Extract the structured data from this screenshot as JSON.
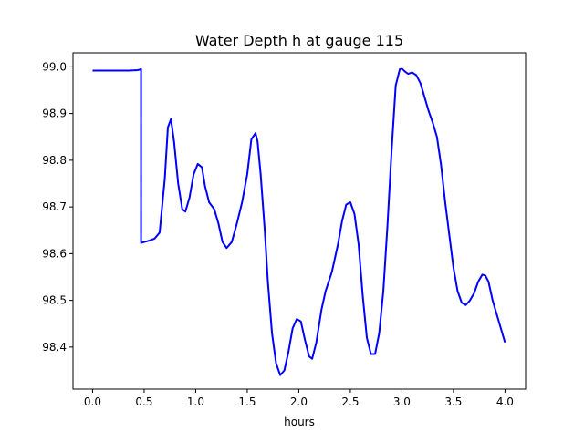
{
  "chart_data": {
    "type": "line",
    "title": "Water Depth h at gauge 115",
    "xlabel": "hours",
    "ylabel": "",
    "xlim": [
      -0.19,
      4.2
    ],
    "ylim": [
      98.31,
      99.03
    ],
    "xticks": [
      0.0,
      0.5,
      1.0,
      1.5,
      2.0,
      2.5,
      3.0,
      3.5,
      4.0
    ],
    "xtick_labels": [
      "0.0",
      "0.5",
      "1.0",
      "1.5",
      "2.0",
      "2.5",
      "3.0",
      "3.5",
      "4.0"
    ],
    "yticks": [
      98.4,
      98.5,
      98.6,
      98.7,
      98.8,
      98.9,
      99.0
    ],
    "ytick_labels": [
      "98.4",
      "98.5",
      "98.6",
      "98.7",
      "98.8",
      "98.9",
      "99.0"
    ],
    "grid": false,
    "series": [
      {
        "color": "#0000ff",
        "x": [
          0.0,
          0.2,
          0.35,
          0.44,
          0.47,
          0.47,
          0.55,
          0.6,
          0.65,
          0.7,
          0.73,
          0.76,
          0.79,
          0.83,
          0.87,
          0.9,
          0.94,
          0.98,
          1.02,
          1.06,
          1.09,
          1.13,
          1.18,
          1.22,
          1.26,
          1.3,
          1.35,
          1.4,
          1.45,
          1.5,
          1.54,
          1.58,
          1.6,
          1.63,
          1.67,
          1.7,
          1.74,
          1.78,
          1.82,
          1.86,
          1.9,
          1.94,
          1.98,
          2.02,
          2.06,
          2.1,
          2.13,
          2.17,
          2.22,
          2.26,
          2.32,
          2.38,
          2.42,
          2.46,
          2.5,
          2.54,
          2.58,
          2.62,
          2.66,
          2.7,
          2.74,
          2.78,
          2.82,
          2.86,
          2.9,
          2.94,
          2.98,
          3.0,
          3.03,
          3.06,
          3.1,
          3.14,
          3.18,
          3.22,
          3.26,
          3.3,
          3.34,
          3.38,
          3.42,
          3.46,
          3.5,
          3.54,
          3.58,
          3.62,
          3.66,
          3.7,
          3.74,
          3.78,
          3.81,
          3.84,
          3.88,
          3.92,
          3.96,
          4.0
        ],
        "y": [
          98.992,
          98.992,
          98.992,
          98.993,
          98.995,
          98.623,
          98.628,
          98.632,
          98.645,
          98.76,
          98.87,
          98.888,
          98.84,
          98.75,
          98.695,
          98.69,
          98.72,
          98.77,
          98.792,
          98.785,
          98.745,
          98.71,
          98.695,
          98.665,
          98.625,
          98.612,
          98.625,
          98.665,
          98.71,
          98.77,
          98.845,
          98.858,
          98.84,
          98.77,
          98.65,
          98.54,
          98.43,
          98.365,
          98.34,
          98.35,
          98.39,
          98.44,
          98.46,
          98.455,
          98.415,
          98.38,
          98.375,
          98.41,
          98.48,
          98.52,
          98.56,
          98.62,
          98.67,
          98.705,
          98.71,
          98.685,
          98.62,
          98.51,
          98.42,
          98.385,
          98.385,
          98.43,
          98.52,
          98.66,
          98.82,
          98.96,
          98.995,
          98.996,
          98.99,
          98.985,
          98.988,
          98.982,
          98.965,
          98.935,
          98.905,
          98.88,
          98.85,
          98.79,
          98.71,
          98.64,
          98.57,
          98.52,
          98.495,
          98.49,
          98.5,
          98.515,
          98.54,
          98.555,
          98.553,
          98.54,
          98.5,
          98.47,
          98.44,
          98.41
        ]
      }
    ]
  }
}
